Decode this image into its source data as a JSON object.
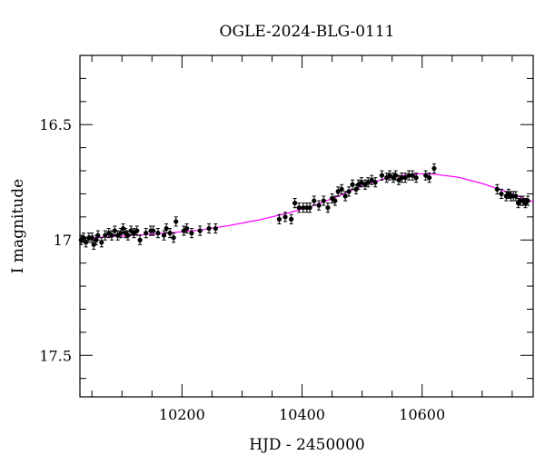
{
  "chart_data": {
    "type": "scatter",
    "title": "OGLE-2024-BLG-0111",
    "xlabel": "HJD - 2450000",
    "ylabel": "I magnitude",
    "xlim": [
      10030,
      10785
    ],
    "ylim": [
      17.68,
      16.2
    ],
    "y_inverted": true,
    "x_ticks": [
      10200,
      10400,
      10600
    ],
    "y_ticks": [
      16.5,
      17,
      17.5
    ],
    "x_tick_labels": [
      "10200",
      "10400",
      "10600"
    ],
    "y_tick_labels": [
      "16.5",
      "17",
      "17.5"
    ],
    "grid": false,
    "legend": "none",
    "colors": {
      "data": "#000000",
      "model": "#ff00ff"
    },
    "series": [
      {
        "type": "scatter",
        "points": [
          [
            10032,
            17.0,
            0.02
          ],
          [
            10036,
            16.99,
            0.02
          ],
          [
            10040,
            17.01,
            0.02
          ],
          [
            10045,
            16.99,
            0.02
          ],
          [
            10050,
            16.99,
            0.02
          ],
          [
            10053,
            17.02,
            0.02
          ],
          [
            10057,
            17.0,
            0.02
          ],
          [
            10060,
            16.98,
            0.02
          ],
          [
            10066,
            17.01,
            0.02
          ],
          [
            10072,
            16.98,
            0.02
          ],
          [
            10078,
            16.97,
            0.02
          ],
          [
            10083,
            16.98,
            0.02
          ],
          [
            10088,
            16.96,
            0.02
          ],
          [
            10093,
            16.98,
            0.02
          ],
          [
            10098,
            16.97,
            0.02
          ],
          [
            10102,
            16.95,
            0.02
          ],
          [
            10106,
            16.97,
            0.02
          ],
          [
            10110,
            16.98,
            0.02
          ],
          [
            10115,
            16.96,
            0.02
          ],
          [
            10120,
            16.97,
            0.02
          ],
          [
            10125,
            16.96,
            0.02
          ],
          [
            10130,
            17.0,
            0.02
          ],
          [
            10140,
            16.97,
            0.02
          ],
          [
            10148,
            16.96,
            0.02
          ],
          [
            10152,
            16.96,
            0.02
          ],
          [
            10160,
            16.97,
            0.02
          ],
          [
            10170,
            16.98,
            0.02
          ],
          [
            10174,
            16.95,
            0.02
          ],
          [
            10180,
            16.97,
            0.02
          ],
          [
            10186,
            16.99,
            0.02
          ],
          [
            10190,
            16.92,
            0.02
          ],
          [
            10203,
            16.96,
            0.02
          ],
          [
            10208,
            16.95,
            0.02
          ],
          [
            10216,
            16.97,
            0.02
          ],
          [
            10230,
            16.96,
            0.02
          ],
          [
            10245,
            16.95,
            0.02
          ],
          [
            10256,
            16.95,
            0.02
          ],
          [
            10362,
            16.91,
            0.02
          ],
          [
            10372,
            16.9,
            0.02
          ],
          [
            10382,
            16.91,
            0.02
          ],
          [
            10388,
            16.84,
            0.02
          ],
          [
            10395,
            16.86,
            0.02
          ],
          [
            10402,
            16.86,
            0.02
          ],
          [
            10408,
            16.86,
            0.02
          ],
          [
            10413,
            16.86,
            0.02
          ],
          [
            10420,
            16.83,
            0.02
          ],
          [
            10428,
            16.85,
            0.02
          ],
          [
            10436,
            16.83,
            0.02
          ],
          [
            10443,
            16.86,
            0.02
          ],
          [
            10450,
            16.82,
            0.02
          ],
          [
            10455,
            16.83,
            0.02
          ],
          [
            10460,
            16.79,
            0.02
          ],
          [
            10466,
            16.78,
            0.02
          ],
          [
            10472,
            16.81,
            0.02
          ],
          [
            10478,
            16.79,
            0.02
          ],
          [
            10484,
            16.76,
            0.02
          ],
          [
            10490,
            16.78,
            0.02
          ],
          [
            10494,
            16.76,
            0.02
          ],
          [
            10499,
            16.75,
            0.02
          ],
          [
            10505,
            16.76,
            0.02
          ],
          [
            10510,
            16.75,
            0.02
          ],
          [
            10516,
            16.74,
            0.02
          ],
          [
            10522,
            16.75,
            0.02
          ],
          [
            10533,
            16.72,
            0.02
          ],
          [
            10541,
            16.73,
            0.02
          ],
          [
            10546,
            16.72,
            0.02
          ],
          [
            10552,
            16.73,
            0.02
          ],
          [
            10556,
            16.72,
            0.02
          ],
          [
            10561,
            16.74,
            0.02
          ],
          [
            10566,
            16.73,
            0.02
          ],
          [
            10572,
            16.73,
            0.02
          ],
          [
            10578,
            16.72,
            0.02
          ],
          [
            10584,
            16.72,
            0.02
          ],
          [
            10590,
            16.73,
            0.02
          ],
          [
            10606,
            16.72,
            0.02
          ],
          [
            10612,
            16.73,
            0.02
          ],
          [
            10620,
            16.69,
            0.02
          ],
          [
            10725,
            16.78,
            0.02
          ],
          [
            10732,
            16.8,
            0.02
          ],
          [
            10740,
            16.81,
            0.02
          ],
          [
            10744,
            16.8,
            0.02
          ],
          [
            10748,
            16.81,
            0.02
          ],
          [
            10752,
            16.81,
            0.02
          ],
          [
            10756,
            16.81,
            0.02
          ],
          [
            10760,
            16.84,
            0.02
          ],
          [
            10764,
            16.83,
            0.02
          ],
          [
            10768,
            16.83,
            0.02
          ],
          [
            10772,
            16.84,
            0.02
          ],
          [
            10776,
            16.83,
            0.02
          ]
        ]
      },
      {
        "type": "line",
        "x": [
          10030,
          10080,
          10130,
          10180,
          10230,
          10280,
          10330,
          10380,
          10420,
          10460,
          10500,
          10540,
          10580,
          10600,
          10620,
          10660,
          10700,
          10740,
          10785
        ],
        "y": [
          16.994,
          16.986,
          16.978,
          16.969,
          16.957,
          16.937,
          16.912,
          16.881,
          16.85,
          16.811,
          16.765,
          16.732,
          16.716,
          16.713,
          16.715,
          16.728,
          16.755,
          16.79,
          16.835
        ]
      }
    ]
  }
}
